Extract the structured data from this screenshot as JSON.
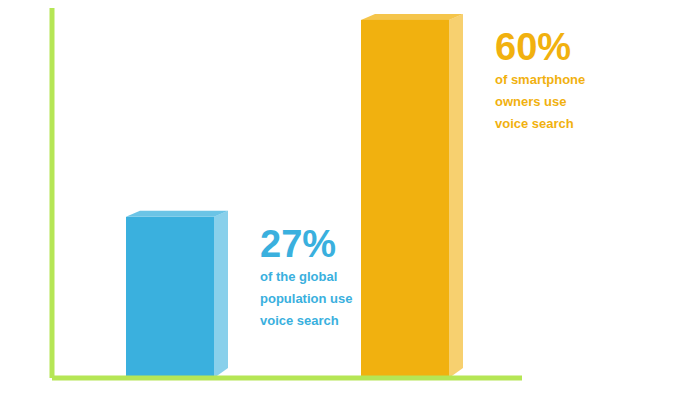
{
  "chart_data": {
    "type": "bar",
    "categories": [
      null,
      null
    ],
    "values": [
      27,
      60
    ],
    "value_labels": [
      "27%",
      "60%"
    ],
    "annotations": [
      "of the global population use voice search",
      "of smartphone owners use voice search"
    ],
    "colors": [
      "#3ab0de",
      "#f1b10f"
    ],
    "ylim": [
      0,
      62
    ],
    "data_labels": true,
    "tick_labels": false,
    "grid": false
  }
}
